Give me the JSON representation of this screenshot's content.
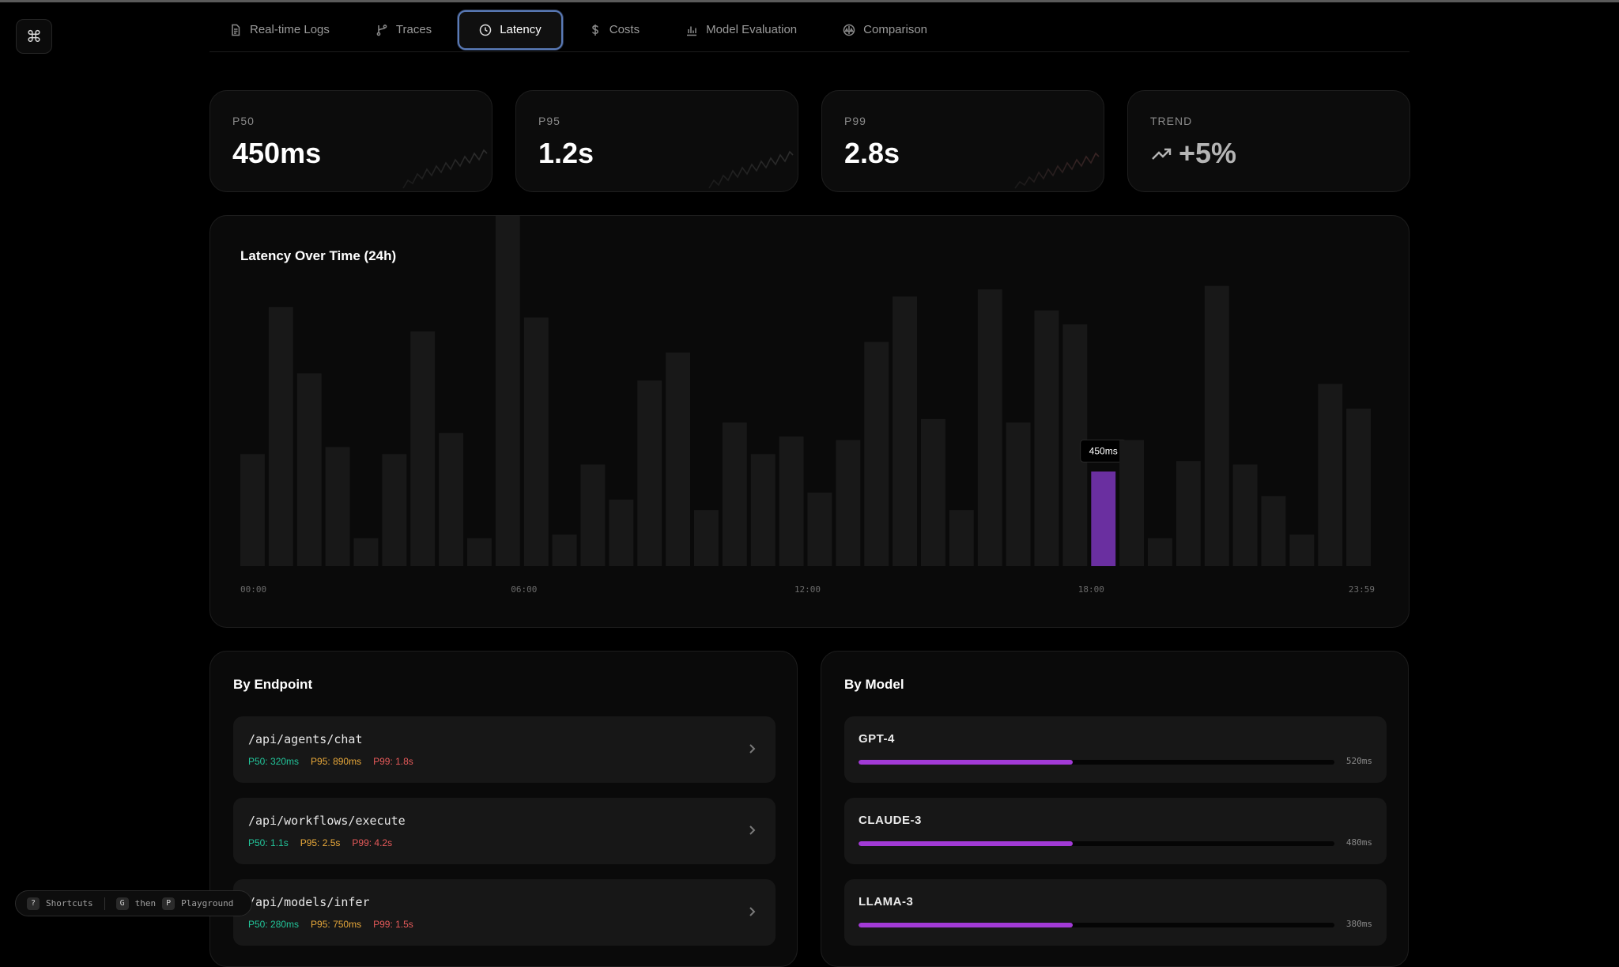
{
  "tabs": [
    {
      "label": "Real-time Logs",
      "icon": "document-icon"
    },
    {
      "label": "Traces",
      "icon": "branch-icon"
    },
    {
      "label": "Latency",
      "icon": "clock-icon",
      "active": true
    },
    {
      "label": "Costs",
      "icon": "dollar-icon"
    },
    {
      "label": "Model Evaluation",
      "icon": "bar-chart-icon"
    },
    {
      "label": "Comparison",
      "icon": "scale-icon"
    }
  ],
  "command_button": {
    "icon": "command-icon",
    "glyph": "⌘"
  },
  "stats": {
    "p50": {
      "label": "P50",
      "value": "450ms"
    },
    "p95": {
      "label": "P95",
      "value": "1.2s"
    },
    "p99": {
      "label": "P99",
      "value": "2.8s"
    },
    "trend": {
      "label": "TREND",
      "value": "+5%",
      "icon": "trending-up-icon"
    }
  },
  "chart_title": "Latency Over Time (24h)",
  "chart_data": {
    "type": "bar",
    "title": "Latency Over Time (24h)",
    "x_tick_labels": [
      "00:00",
      "06:00",
      "12:00",
      "18:00",
      "23:59"
    ],
    "values": [
      0.32,
      0.74,
      0.55,
      0.34,
      0.08,
      0.32,
      0.67,
      0.38,
      0.08,
      1.0,
      0.71,
      0.09,
      0.29,
      0.19,
      0.53,
      0.61,
      0.16,
      0.41,
      0.32,
      0.37,
      0.21,
      0.36,
      0.64,
      0.77,
      0.42,
      0.16,
      0.79,
      0.41,
      0.73,
      0.69,
      0.27,
      0.36,
      0.08,
      0.3,
      0.8,
      0.29,
      0.2,
      0.09,
      0.52,
      0.45
    ],
    "highlight_index": 30,
    "highlight_label": "450ms",
    "bar_color": "#181818",
    "highlight_color": "#6a2fa0",
    "grid": false
  },
  "endpoints": {
    "title": "By Endpoint",
    "items": [
      {
        "path": "/api/agents/chat",
        "p50": "P50: 320ms",
        "p95": "P95: 890ms",
        "p99": "P99: 1.8s"
      },
      {
        "path": "/api/workflows/execute",
        "p50": "P50: 1.1s",
        "p95": "P95: 2.5s",
        "p99": "P99: 4.2s"
      },
      {
        "path": "/api/models/infer",
        "p50": "P50: 280ms",
        "p95": "P95: 750ms",
        "p99": "P99: 1.5s"
      }
    ]
  },
  "models": {
    "title": "By Model",
    "items": [
      {
        "name": "GPT-4",
        "value": "520ms",
        "fill_fraction": 0.45
      },
      {
        "name": "CLAUDE-3",
        "value": "480ms",
        "fill_fraction": 0.45
      },
      {
        "name": "LLAMA-3",
        "value": "380ms",
        "fill_fraction": 0.45
      }
    ]
  },
  "shortcuts": {
    "help_key": "?",
    "help_label": "Shortcuts",
    "nav_key1": "G",
    "nav_then": "then",
    "nav_key2": "P",
    "nav_label": "Playground"
  },
  "colors": {
    "accent": "#a23ad6",
    "p50": "#22c59a",
    "p95": "#e8a83a",
    "p99": "#e65a5a"
  }
}
